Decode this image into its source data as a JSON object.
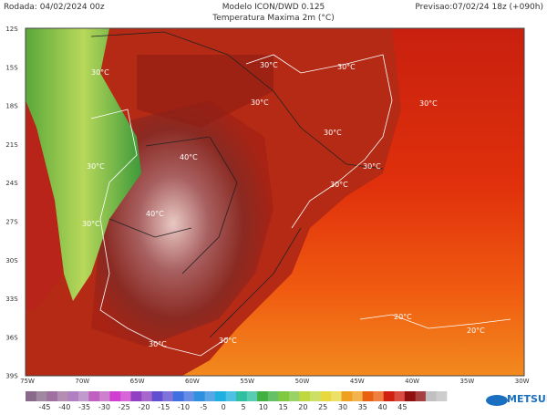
{
  "header": {
    "run": "Rodada: 04/02/2024 00z",
    "model": "Modelo ICON/DWD 0.125",
    "variable": "Temperatura Maxima 2m (°C)",
    "forecast": "Previsao:07/02/24 18z (+090h)"
  },
  "map": {
    "lat_labels": [
      "12S",
      "15S",
      "18S",
      "21S",
      "24S",
      "27S",
      "30S",
      "33S",
      "36S",
      "39S"
    ],
    "lon_labels": [
      "75W",
      "70W",
      "65W",
      "60W",
      "55W",
      "50W",
      "45W",
      "40W",
      "35W",
      "30W"
    ],
    "contour_labels": [
      "30°C",
      "30°C",
      "30°C",
      "30°C",
      "30°C",
      "40°C",
      "40°C",
      "30°C",
      "30°C",
      "30°C",
      "30°C",
      "30°C",
      "20°C",
      "20°C",
      "30°C",
      "30°C"
    ]
  },
  "colorbar": {
    "labels": [
      "-45",
      "-40",
      "-35",
      "-30",
      "-25",
      "-20",
      "-15",
      "-10",
      "-5",
      "0",
      "5",
      "10",
      "15",
      "20",
      "25",
      "30",
      "35",
      "40",
      "45"
    ]
  },
  "logo": "METSUL"
}
